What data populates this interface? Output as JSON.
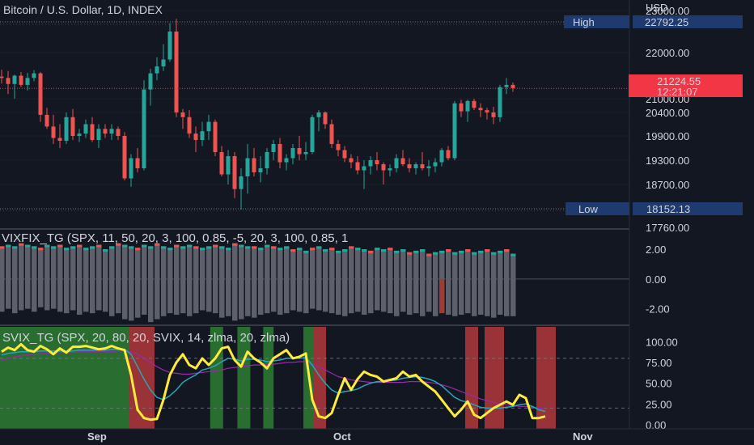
{
  "colors": {
    "background": "#131722",
    "up": "#26a69a",
    "down": "#ef5350",
    "grid": "#2a2e39",
    "text": "#d1d4dc",
    "price_badge": "#f23645",
    "hl_badge": "#1e3a6e",
    "vix_bar": "#5d606b",
    "svix_yellow": "#ffeb3b",
    "svix_teal": "#26a6b8",
    "svix_purple": "#9c27b0",
    "svix_green_zone": "#2e7d32",
    "svix_red_zone": "#b2383b"
  },
  "chart_data": [
    {
      "type": "candlestick",
      "title": "Bitcoin / U.S. Dollar, 1D, INDEX",
      "currency": "USD",
      "y_ticks": [
        23000,
        22000,
        21000,
        20400,
        19900,
        19300,
        18700,
        17760
      ],
      "y_tick_labels": [
        "23000.00",
        "22000.00",
        "21000.00",
        "20400.00",
        "19900.00",
        "19300.00",
        "18700.00",
        "17760.00"
      ],
      "ylim": [
        17760,
        23200
      ],
      "high": {
        "label": "High",
        "value": "22792.25",
        "price": 22792.25
      },
      "low": {
        "label": "Low",
        "value": "18152.13",
        "price": 18152.13
      },
      "last": {
        "value": "21224.55",
        "countdown": "12:21:07",
        "price": 21224.55
      },
      "x_labels": [
        {
          "label": "Sep",
          "index": 15
        },
        {
          "label": "Oct",
          "index": 53
        },
        {
          "label": "Nov",
          "index": 90
        }
      ],
      "candles": [
        [
          21480,
          21630,
          21330,
          21450
        ],
        [
          21450,
          21600,
          21100,
          21320
        ],
        [
          21320,
          21520,
          21000,
          21500
        ],
        [
          21500,
          21580,
          21250,
          21300
        ],
        [
          21300,
          21560,
          21180,
          21450
        ],
        [
          21450,
          21620,
          21380,
          21550
        ],
        [
          21550,
          21580,
          20200,
          20350
        ],
        [
          20350,
          20600,
          20050,
          20100
        ],
        [
          20100,
          20350,
          19700,
          19850
        ],
        [
          19850,
          20150,
          19600,
          19780
        ],
        [
          19780,
          20400,
          19700,
          20300
        ],
        [
          20300,
          20550,
          19800,
          19900
        ],
        [
          19900,
          20050,
          19750,
          19950
        ],
        [
          19950,
          20250,
          19850,
          20150
        ],
        [
          20150,
          20300,
          19750,
          19800
        ],
        [
          19800,
          20150,
          19600,
          20050
        ],
        [
          20050,
          20150,
          19850,
          19950
        ],
        [
          19950,
          20150,
          19800,
          20050
        ],
        [
          20050,
          20100,
          19800,
          19900
        ],
        [
          19900,
          19980,
          18800,
          18850
        ],
        [
          18850,
          19450,
          18650,
          19350
        ],
        [
          19350,
          19600,
          19000,
          19100
        ],
        [
          19100,
          21400,
          19050,
          21200
        ],
        [
          21200,
          21650,
          20700,
          21550
        ],
        [
          21550,
          21900,
          21400,
          21700
        ],
        [
          21700,
          22200,
          21600,
          21850
        ],
        [
          21850,
          22700,
          21800,
          22500
        ],
        [
          22500,
          22800,
          20300,
          20400
        ],
        [
          20400,
          20550,
          20050,
          20300
        ],
        [
          20300,
          20500,
          19850,
          19950
        ],
        [
          19950,
          20100,
          19500,
          19800
        ],
        [
          19800,
          20200,
          19650,
          20000
        ],
        [
          20000,
          20350,
          19800,
          20200
        ],
        [
          20200,
          20250,
          19400,
          19500
        ],
        [
          19500,
          19650,
          18900,
          18950
        ],
        [
          18950,
          19550,
          18700,
          19400
        ],
        [
          19400,
          19500,
          18400,
          18600
        ],
        [
          18600,
          19100,
          18150,
          18900
        ],
        [
          18900,
          19700,
          18500,
          19350
        ],
        [
          19350,
          19600,
          18900,
          19000
        ],
        [
          19000,
          19400,
          18750,
          19100
        ],
        [
          19100,
          19600,
          18950,
          19500
        ],
        [
          19500,
          19800,
          19300,
          19700
        ],
        [
          19700,
          19850,
          19100,
          19250
        ],
        [
          19250,
          19450,
          19050,
          19350
        ],
        [
          19350,
          19700,
          19200,
          19600
        ],
        [
          19600,
          19900,
          19300,
          19450
        ],
        [
          19450,
          19750,
          19300,
          19500
        ],
        [
          19500,
          20350,
          19450,
          20300
        ],
        [
          20300,
          20500,
          20000,
          20400
        ],
        [
          20400,
          20450,
          20050,
          20150
        ],
        [
          20150,
          20250,
          19600,
          19700
        ],
        [
          19700,
          19800,
          19400,
          19550
        ],
        [
          19550,
          19650,
          19250,
          19350
        ],
        [
          19350,
          19450,
          19100,
          19250
        ],
        [
          19250,
          19400,
          18950,
          19050
        ],
        [
          19050,
          19300,
          18600,
          19150
        ],
        [
          19150,
          19400,
          18950,
          19300
        ],
        [
          19300,
          19500,
          19050,
          19200
        ],
        [
          19200,
          19250,
          18700,
          19050
        ],
        [
          19050,
          19200,
          18900,
          19100
        ],
        [
          19100,
          19450,
          19000,
          19350
        ],
        [
          19350,
          19550,
          19150,
          19200
        ],
        [
          19200,
          19350,
          19000,
          19100
        ],
        [
          19100,
          19250,
          18950,
          19200
        ],
        [
          19200,
          19500,
          19050,
          19100
        ],
        [
          19100,
          19300,
          18900,
          19150
        ],
        [
          19150,
          19350,
          19000,
          19250
        ],
        [
          19250,
          19600,
          19150,
          19550
        ],
        [
          19550,
          19650,
          19300,
          19350
        ],
        [
          19350,
          20900,
          19300,
          20800
        ],
        [
          20800,
          20950,
          20300,
          20450
        ],
        [
          20450,
          20950,
          20200,
          20900
        ],
        [
          20900,
          21000,
          20500,
          20600
        ],
        [
          20600,
          20800,
          20300,
          20500
        ],
        [
          20500,
          20600,
          20250,
          20400
        ],
        [
          20400,
          20650,
          20150,
          20300
        ],
        [
          20300,
          21300,
          20200,
          21250
        ],
        [
          21250,
          21450,
          21100,
          21300
        ],
        [
          21300,
          21350,
          21150,
          21230
        ]
      ]
    },
    {
      "type": "bar",
      "title": "VIXFIX_TG (SPX, 11, 50, 20, 3, 100, 0.85, -5, 20, 3, 100, 0.85, 1",
      "y_ticks": [
        2.0,
        0.0,
        -2.0
      ],
      "y_tick_labels": [
        "2.00",
        "0.00",
        "-2.00"
      ],
      "ylim": [
        -3.0,
        3.2
      ],
      "up_values": [
        2.2,
        2.3,
        2.2,
        2.4,
        2.3,
        2.2,
        2.1,
        2.3,
        2.2,
        2.3,
        2.1,
        2.2,
        2.3,
        2.1,
        2.2,
        2.3,
        2.0,
        2.2,
        2.4,
        2.3,
        2.2,
        2.1,
        2.3,
        2.2,
        2.4,
        2.2,
        2.1,
        2.3,
        2.2,
        2.3,
        2.2,
        2.1,
        2.2,
        2.3,
        2.2,
        2.1,
        2.4,
        2.3,
        2.2,
        2.2,
        2.1,
        2.3,
        2.2,
        2.1,
        2.2,
        2.0,
        2.1,
        1.9,
        2.1,
        2.2,
        2.0,
        2.1,
        1.9,
        2.0,
        2.2,
        2.1,
        2.0,
        1.9,
        2.1,
        2.0,
        2.1,
        1.9,
        2.0,
        1.8,
        1.9,
        2.0,
        1.7,
        1.8,
        1.9,
        2.0,
        1.8,
        1.9,
        2.0,
        1.8,
        1.9,
        2.0,
        1.8,
        1.9,
        2.0,
        1.7
      ],
      "down_values": [
        -2.2,
        -2.0,
        -2.3,
        -2.1,
        -2.0,
        -2.2,
        -1.9,
        -2.1,
        -2.0,
        -2.2,
        -2.3,
        -2.1,
        -2.4,
        -2.2,
        -2.3,
        -2.1,
        -2.2,
        -2.5,
        -2.3,
        -2.7,
        -2.8,
        -2.6,
        -2.4,
        -2.9,
        -2.7,
        -2.5,
        -2.3,
        -2.4,
        -2.3,
        -2.5,
        -2.3,
        -2.1,
        -2.2,
        -2.3,
        -2.6,
        -2.5,
        -2.8,
        -2.7,
        -2.5,
        -2.6,
        -2.4,
        -2.3,
        -2.2,
        -2.4,
        -2.3,
        -2.1,
        -2.2,
        -2.3,
        -2.0,
        -2.1,
        -2.2,
        -2.3,
        -2.4,
        -2.5,
        -2.3,
        -2.2,
        -2.4,
        -2.3,
        -2.1,
        -2.2,
        -2.3,
        -2.5,
        -2.2,
        -2.4,
        -2.3,
        -2.5,
        -2.2,
        -2.5,
        -2.3,
        -2.4,
        -2.5,
        -2.4,
        -2.3,
        -2.5,
        -2.4,
        -2.5,
        -2.6,
        -2.4,
        -2.5,
        -2.5
      ],
      "highlight_index": 68
    },
    {
      "type": "line",
      "title": "SVIX_TG (SPX, 20, 80, 20, SVIX, 14, zlma, 20, zlma)",
      "y_ticks": [
        100,
        75,
        50,
        25,
        0
      ],
      "y_tick_labels": [
        "100.00",
        "75.00",
        "50.00",
        "25.00",
        "0.00"
      ],
      "ylim": [
        -5,
        118
      ],
      "dashed_levels": [
        80,
        20
      ],
      "zones": [
        {
          "from": 0,
          "to": 20,
          "color": "green"
        },
        {
          "from": 20,
          "to": 24,
          "color": "red"
        },
        {
          "from": 32.6,
          "to": 34.6,
          "color": "green"
        },
        {
          "from": 36.8,
          "to": 38.8,
          "color": "green"
        },
        {
          "from": 40.8,
          "to": 42.4,
          "color": "green"
        },
        {
          "from": 47,
          "to": 48.5,
          "color": "green"
        },
        {
          "from": 48.5,
          "to": 50.5,
          "color": "red"
        },
        {
          "from": 72,
          "to": 74,
          "color": "red"
        },
        {
          "from": 75,
          "to": 78,
          "color": "red"
        },
        {
          "from": 83,
          "to": 86,
          "color": "red"
        }
      ],
      "series": [
        {
          "name": "",
          "color": "yellow",
          "values": [
            88,
            93,
            90,
            97,
            90,
            88,
            95,
            91,
            85,
            92,
            87,
            94,
            94,
            95,
            93,
            91,
            92,
            95,
            92,
            90,
            60,
            18,
            8,
            6,
            7,
            30,
            60,
            75,
            85,
            72,
            68,
            80,
            72,
            80,
            92,
            94,
            78,
            70,
            88,
            80,
            75,
            68,
            80,
            85,
            90,
            80,
            82,
            86,
            30,
            10,
            8,
            14,
            36,
            56,
            42,
            55,
            64,
            60,
            58,
            52,
            54,
            56,
            64,
            58,
            60,
            52,
            46,
            40,
            30,
            20,
            10,
            18,
            28,
            12,
            8,
            14,
            20,
            24,
            28,
            24,
            36,
            32,
            8,
            8,
            10
          ]
        },
        {
          "name": "",
          "color": "teal",
          "values": [
            84,
            86,
            87,
            88,
            88,
            88,
            89,
            89,
            89,
            89,
            88,
            89,
            90,
            90,
            90,
            90,
            90,
            91,
            91,
            91,
            85,
            70,
            55,
            42,
            33,
            30,
            35,
            42,
            51,
            56,
            60,
            66,
            68,
            71,
            76,
            80,
            79,
            77,
            79,
            79,
            78,
            76,
            77,
            78,
            80,
            80,
            80,
            81,
            72,
            60,
            50,
            42,
            38,
            40,
            41,
            43,
            47,
            50,
            52,
            52,
            53,
            54,
            56,
            57,
            58,
            57,
            55,
            52,
            47,
            40,
            33,
            29,
            27,
            24,
            21,
            20,
            20,
            20,
            21,
            22,
            24,
            25,
            22,
            18,
            16
          ]
        },
        {
          "name": "",
          "color": "purple",
          "values": [
            78,
            80,
            82,
            83,
            84,
            85,
            86,
            86,
            87,
            87,
            87,
            87,
            88,
            88,
            88,
            88,
            88,
            88,
            89,
            89,
            88,
            85,
            80,
            75,
            70,
            66,
            63,
            62,
            61,
            61,
            62,
            63,
            64,
            65,
            66,
            68,
            69,
            70,
            71,
            72,
            72,
            73,
            73,
            74,
            75,
            75,
            76,
            76,
            73,
            70,
            66,
            62,
            58,
            56,
            54,
            53,
            52,
            51,
            51,
            51,
            51,
            51,
            51,
            52,
            52,
            52,
            51,
            50,
            48,
            46,
            43,
            40,
            37,
            34,
            31,
            29,
            27,
            25,
            24,
            23,
            22,
            22,
            21,
            20,
            19
          ]
        }
      ]
    }
  ]
}
